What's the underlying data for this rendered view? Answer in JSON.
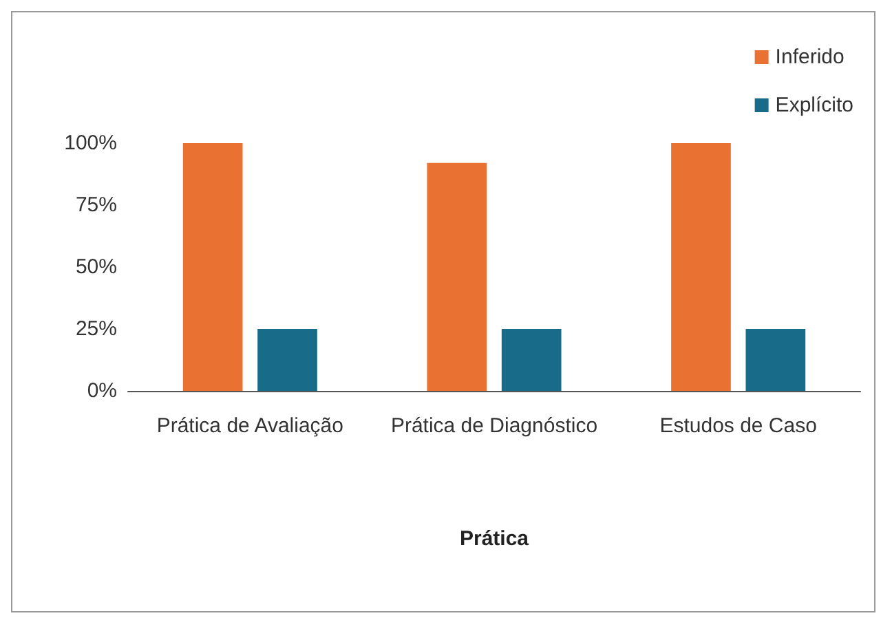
{
  "chart_data": {
    "type": "bar",
    "xlabel": "Prática",
    "categories": [
      "Prática de Avaliação",
      "Prática de Diagnóstico",
      "Estudos de Caso"
    ],
    "series": [
      {
        "name": "Inferido",
        "color": "#e97132",
        "values": [
          100,
          92,
          100
        ]
      },
      {
        "name": "Explícito",
        "color": "#196b8a",
        "values": [
          25,
          25,
          25
        ]
      }
    ],
    "ylim": [
      0,
      100
    ],
    "yticks": [
      {
        "value": 0,
        "label": "0%"
      },
      {
        "value": 25,
        "label": "25%"
      },
      {
        "value": 50,
        "label": "50%"
      },
      {
        "value": 75,
        "label": "75%"
      },
      {
        "value": 100,
        "label": "100%"
      }
    ],
    "grid": false,
    "legend": "top right"
  }
}
